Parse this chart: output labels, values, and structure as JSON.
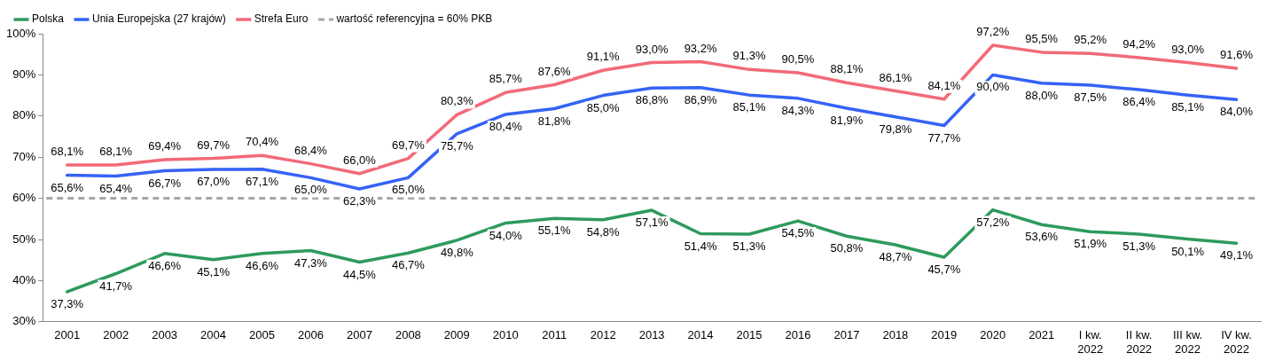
{
  "chart_data": {
    "type": "line",
    "categories": [
      "2001",
      "2002",
      "2003",
      "2004",
      "2005",
      "2006",
      "2007",
      "2008",
      "2009",
      "2010",
      "2011",
      "2012",
      "2013",
      "2014",
      "2015",
      "2016",
      "2017",
      "2018",
      "2019",
      "2020",
      "2021",
      "I kw. 2022",
      "II kw. 2022",
      "III kw. 2022",
      "IV kw. 2022"
    ],
    "series": [
      {
        "name": "Polska",
        "color": "#2e9a5c",
        "values": [
          37.3,
          41.7,
          46.6,
          45.1,
          46.6,
          47.3,
          44.5,
          46.7,
          49.8,
          54.0,
          55.1,
          54.8,
          57.1,
          51.4,
          51.3,
          54.5,
          50.8,
          48.7,
          45.7,
          57.2,
          53.6,
          51.9,
          51.3,
          50.1,
          49.1
        ],
        "value_labels": [
          "37,3%",
          "41,7%",
          "46,6%",
          "45,1%",
          "46,6%",
          "47,3%",
          "44,5%",
          "46,7%",
          "49,8%",
          "54,0%",
          "55,1%",
          "54,8%",
          "57,1%",
          "51,4%",
          "51,3%",
          "54,5%",
          "50,8%",
          "48,7%",
          "45,7%",
          "57,2%",
          "53,6%",
          "51,9%",
          "51,3%",
          "50,1%",
          "49,1%"
        ]
      },
      {
        "name": "Unia Europejska (27 krajów)",
        "color": "#3563f5",
        "values": [
          65.6,
          65.4,
          66.7,
          67.0,
          67.1,
          65.0,
          62.3,
          65.0,
          75.7,
          80.4,
          81.8,
          85.0,
          86.8,
          86.9,
          85.1,
          84.3,
          81.9,
          79.8,
          77.7,
          90.0,
          88.0,
          87.5,
          86.4,
          85.1,
          84.0
        ],
        "value_labels": [
          "65,6%",
          "65,4%",
          "66,7%",
          "67,0%",
          "67,1%",
          "65,0%",
          "62,3%",
          "65,0%",
          "75,7%",
          "80,4%",
          "81,8%",
          "85,0%",
          "86,8%",
          "86,9%",
          "85,1%",
          "84,3%",
          "81,9%",
          "79,8%",
          "77,7%",
          "90,0%",
          "88,0%",
          "87,5%",
          "86,4%",
          "85,1%",
          "84,0%"
        ]
      },
      {
        "name": "Strefa Euro",
        "color": "#f26a78",
        "values": [
          68.1,
          68.1,
          69.4,
          69.7,
          70.4,
          68.4,
          66.0,
          69.7,
          80.3,
          85.7,
          87.6,
          91.1,
          93.0,
          93.2,
          91.3,
          90.5,
          88.1,
          86.1,
          84.1,
          97.2,
          95.5,
          95.2,
          94.2,
          93.0,
          91.6
        ],
        "value_labels": [
          "68,1%",
          "68,1%",
          "69,4%",
          "69,7%",
          "70,4%",
          "68,4%",
          "66,0%",
          "69,7%",
          "80,3%",
          "85,7%",
          "87,6%",
          "91,1%",
          "93,0%",
          "93,2%",
          "91,3%",
          "90,5%",
          "88,1%",
          "86,1%",
          "84,1%",
          "97,2%",
          "95,5%",
          "95,2%",
          "94,2%",
          "93,0%",
          "91,6%"
        ]
      }
    ],
    "ref_lines": [
      {
        "axis": "y",
        "value": 60,
        "label": "wartość referencyjna = 60% PKB",
        "color": "#a6a6a6",
        "line_style": "dashed"
      }
    ],
    "ylim": [
      30,
      100
    ],
    "yticks": [
      {
        "value": 30,
        "label": "30%"
      },
      {
        "value": 40,
        "label": "40%"
      },
      {
        "value": 50,
        "label": "50%"
      },
      {
        "value": 60,
        "label": "60%"
      },
      {
        "value": 70,
        "label": "70%"
      },
      {
        "value": 80,
        "label": "80%"
      },
      {
        "value": 90,
        "label": "90%"
      },
      {
        "value": 100,
        "label": "100%"
      }
    ],
    "grid": false,
    "legend": "top left",
    "marker": "none",
    "line_style": "solid"
  }
}
